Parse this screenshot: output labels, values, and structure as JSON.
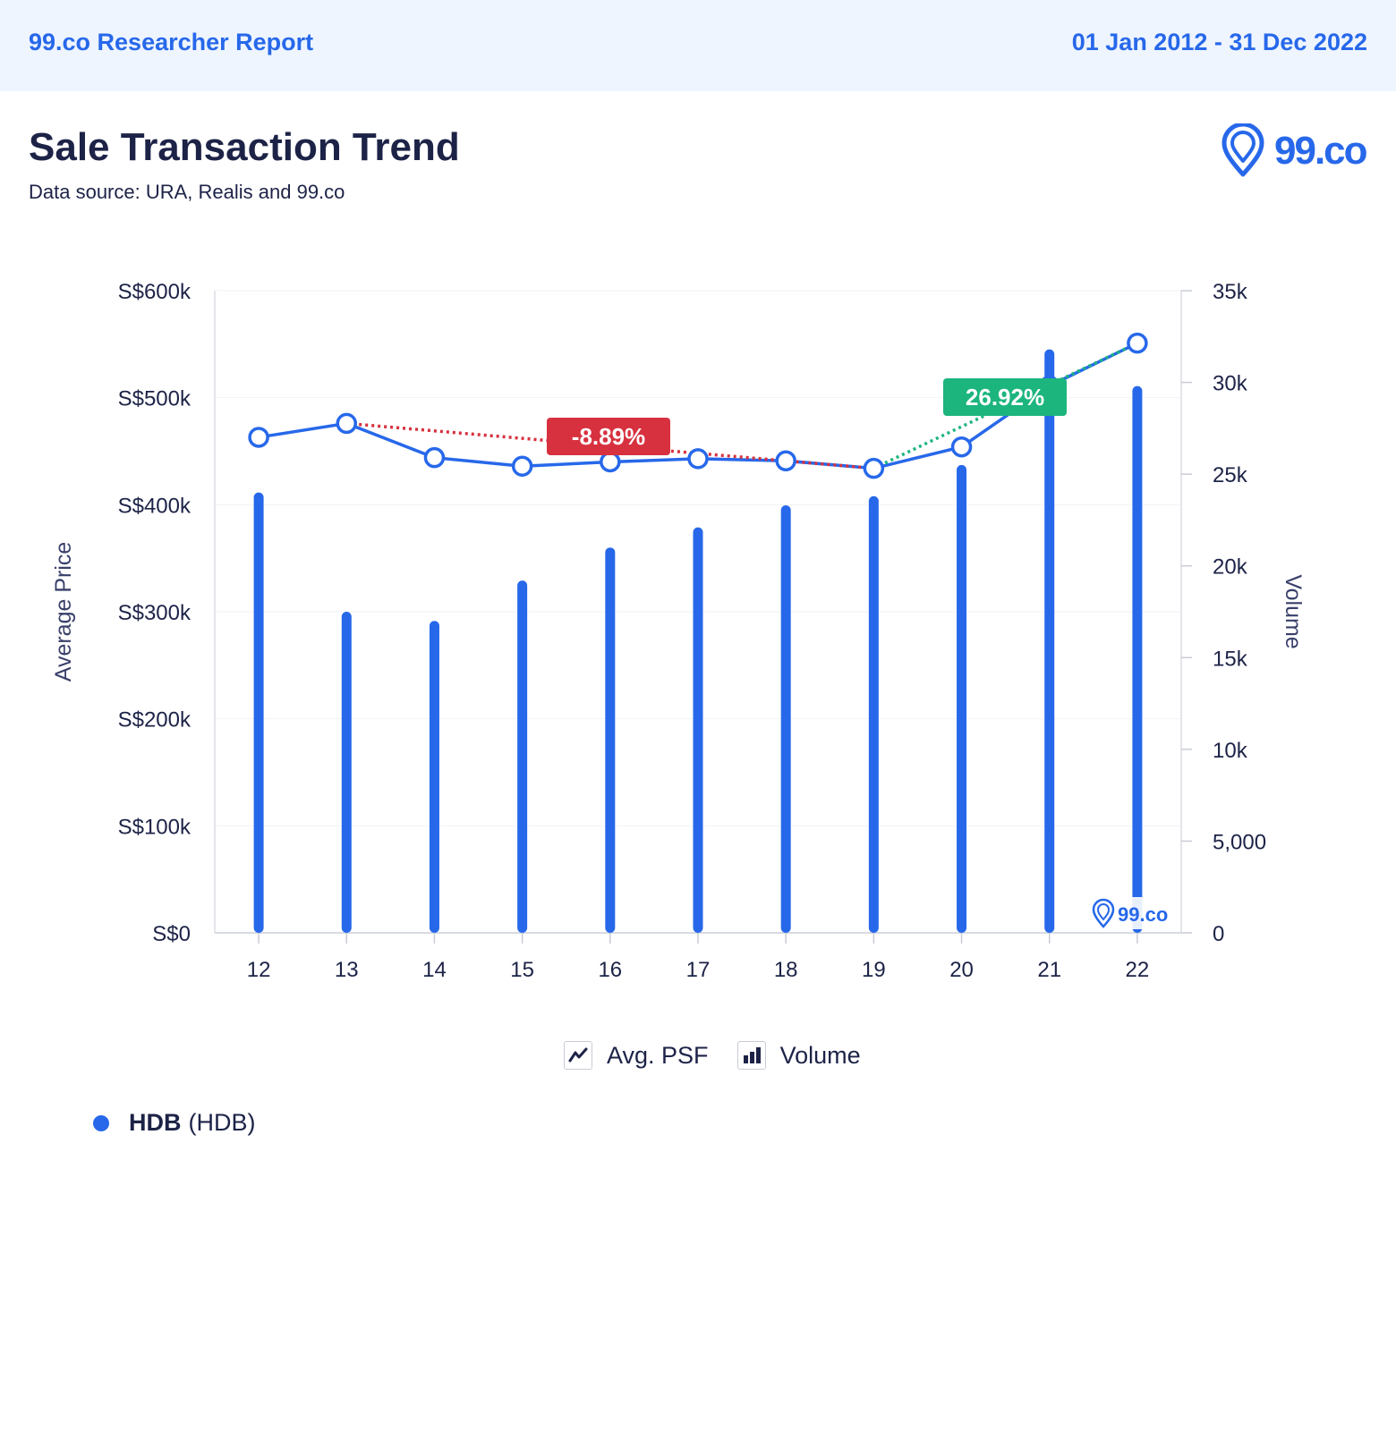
{
  "header": {
    "report_name": "99.co Researcher Report",
    "date_range": "01 Jan 2012 - 31 Dec 2022"
  },
  "title": "Sale Transaction Trend",
  "subtitle": "Data source: URA, Realis and 99.co",
  "logo": {
    "text": "99.co",
    "icon": "location-pin-icon"
  },
  "watermark": {
    "text": "99.co",
    "icon": "location-pin-icon"
  },
  "colors": {
    "accent": "#2768ea",
    "text_dark": "#1d2347",
    "decline": "#d7313f",
    "growth": "#1cb57e"
  },
  "chart_data": {
    "type": "bar",
    "categories": [
      "12",
      "13",
      "14",
      "15",
      "16",
      "17",
      "18",
      "19",
      "20",
      "21",
      "22"
    ],
    "series": [
      {
        "name": "Volume",
        "type": "bar",
        "axis": "right",
        "values": [
          24000,
          17500,
          17000,
          19200,
          21000,
          22100,
          23300,
          23800,
          25500,
          31800,
          29800
        ]
      },
      {
        "name": "Avg. PSF",
        "type": "line",
        "axis": "left",
        "values": [
          463000,
          476000,
          444000,
          436000,
          440000,
          443000,
          441000,
          434000,
          454000,
          511000,
          551000
        ]
      }
    ],
    "left_axis": {
      "label": "Average Price",
      "range": [
        0,
        600000
      ],
      "ticks": [
        "S$0",
        "S$100k",
        "S$200k",
        "S$300k",
        "S$400k",
        "S$500k",
        "S$600k"
      ]
    },
    "right_axis": {
      "label": "Volume",
      "range": [
        0,
        35000
      ],
      "ticks": [
        "0",
        "5,000",
        "10k",
        "15k",
        "20k",
        "25k",
        "30k",
        "35k"
      ]
    },
    "annotations": [
      {
        "text": "-8.89%",
        "from_index": 1,
        "to_index": 7,
        "kind": "decline"
      },
      {
        "text": "26.92%",
        "from_index": 7,
        "to_index": 10,
        "kind": "growth"
      }
    ],
    "grid": true,
    "legend_position": "bottom-center"
  },
  "legend": {
    "items": [
      {
        "label": "Avg. PSF",
        "icon": "line-chart-icon"
      },
      {
        "label": "Volume",
        "icon": "bar-chart-icon"
      }
    ]
  },
  "series_key": {
    "name": "HDB",
    "detail": "(HDB)"
  }
}
